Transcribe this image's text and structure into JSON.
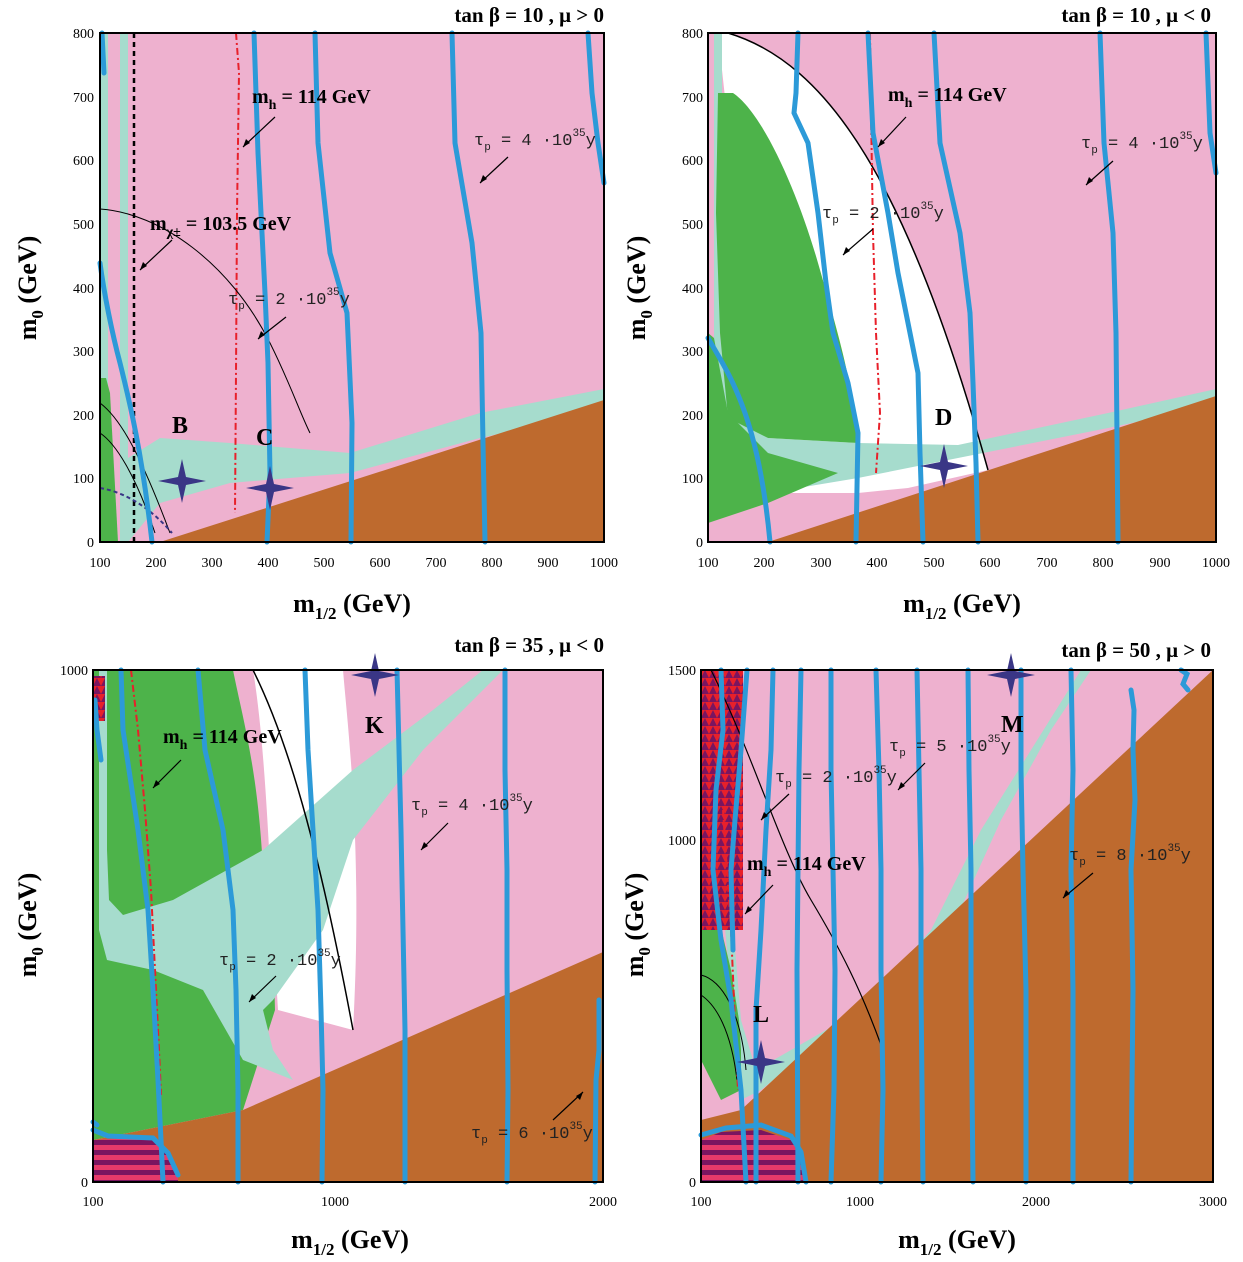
{
  "colors": {
    "pink": "#eeb1cf",
    "brown": "#be6a2e",
    "green": "#4db34a",
    "turquoise": "#a6dccd",
    "contour_blue": "#2c9ad8",
    "higgs_red": "#e8202a",
    "star_navy": "#3a3686",
    "hatch_purple": "#7a1560"
  },
  "labels": {
    "m0_axis": "m",
    "m0_sub": "0",
    "m0_unit": " (GeV)",
    "mhalf_axis": "m",
    "mhalf_sub": "1/2",
    "mhalf_unit": " (GeV)",
    "mh_prefix": "m",
    "mh_sub": "h",
    "mh_value": " = 114 GeV",
    "mchi_prefix": "m",
    "mchi_sub": "χ±",
    "mchi_value": "  = 103.5 GeV",
    "tau_prefix": "τ",
    "tau_sub": "p",
    "tau_2": " = 2 ·10",
    "tau_4": " = 4 ·10",
    "tau_5": " = 5 ·10",
    "tau_6": " = 6 ·10",
    "tau_8": " = 8 ·10",
    "tau_exp": "35",
    "tau_unit": "y"
  },
  "chart_data": [
    {
      "type": "area",
      "title": "tan β = 10 ,  μ > 0",
      "xlabel": "m1/2 (GeV)",
      "ylabel": "m0 (GeV)",
      "xlim": [
        100,
        1000
      ],
      "ylim": [
        0,
        800
      ],
      "xticks": [
        "100",
        "200",
        "300",
        "400",
        "500",
        "600",
        "700",
        "800",
        "900",
        "1000"
      ],
      "yticks": [
        "0",
        "100",
        "200",
        "300",
        "400",
        "500",
        "600",
        "700",
        "800"
      ],
      "benchmarks": [
        {
          "name": "B",
          "x": 250,
          "y": 100
        },
        {
          "name": "C",
          "x": 400,
          "y": 90
        }
      ],
      "annotations": [
        "m_h = 114 GeV",
        "m_χ± = 103.5 GeV",
        "τ_p = 2·10^35 y",
        "τ_p = 4·10^35 y"
      ]
    },
    {
      "type": "area",
      "title": "tan β = 10 ,  μ < 0",
      "xlabel": "m1/2 (GeV)",
      "ylabel": "m0 (GeV)",
      "xlim": [
        100,
        1000
      ],
      "ylim": [
        0,
        800
      ],
      "xticks": [
        "100",
        "200",
        "300",
        "400",
        "500",
        "600",
        "700",
        "800",
        "900",
        "1000"
      ],
      "yticks": [
        "0",
        "100",
        "200",
        "300",
        "400",
        "500",
        "600",
        "700",
        "800"
      ],
      "benchmarks": [
        {
          "name": "D",
          "x": 525,
          "y": 120
        }
      ],
      "annotations": [
        "m_h = 114 GeV",
        "τ_p = 2·10^35 y",
        "τ_p = 4·10^35 y"
      ]
    },
    {
      "type": "area",
      "title": "tan β = 35 ,  μ < 0",
      "xlabel": "m1/2 (GeV)",
      "ylabel": "m0 (GeV)",
      "xlim": [
        100,
        2000
      ],
      "ylim": [
        0,
        1000
      ],
      "xticks": [
        "100",
        "1000",
        "2000"
      ],
      "yticks": [
        "0",
        "1000"
      ],
      "benchmarks": [
        {
          "name": "K",
          "x": 1150,
          "y": 1000
        }
      ],
      "annotations": [
        "m_h = 114 GeV",
        "τ_p = 2·10^35 y",
        "τ_p = 4·10^35 y",
        "τ_p = 6·10^35 y"
      ]
    },
    {
      "type": "area",
      "title": "tan β = 50 ,  μ > 0",
      "xlabel": "m1/2 (GeV)",
      "ylabel": "m0 (GeV)",
      "xlim": [
        100,
        3000
      ],
      "ylim": [
        0,
        1500
      ],
      "xticks": [
        "100",
        "1000",
        "2000",
        "3000"
      ],
      "yticks": [
        "0",
        "1000",
        "1500"
      ],
      "benchmarks": [
        {
          "name": "L",
          "x": 460,
          "y": 310
        },
        {
          "name": "M",
          "x": 1940,
          "y": 1500
        }
      ],
      "annotations": [
        "m_h = 114 GeV",
        "τ_p = 2·10^35 y",
        "τ_p = 5·10^35 y",
        "τ_p = 8·10^35 y"
      ]
    }
  ]
}
